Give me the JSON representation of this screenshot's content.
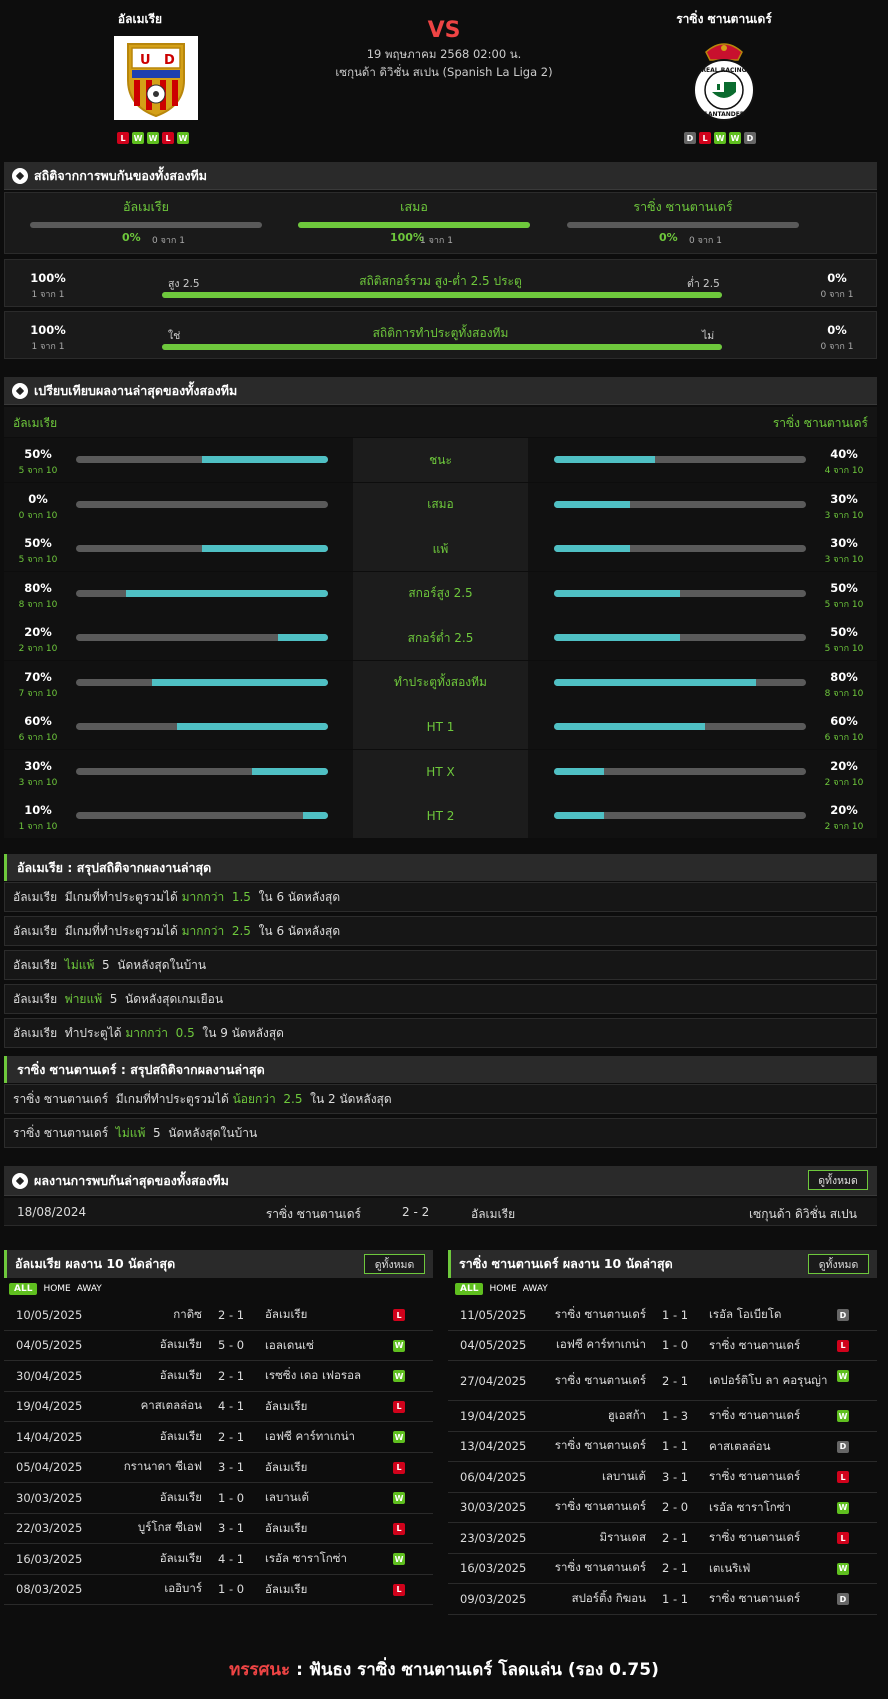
{
  "header": {
    "home": "อัลเมเรีย",
    "away": "ราซิ่ง ซานตานเดร์",
    "vs": "VS",
    "date": "19 พฤษภาคม 2568 02:00 น.",
    "league": "เซกุนด้า ดิวิชั่น สเปน (Spanish La Liga 2)",
    "home_form": [
      "L",
      "W",
      "W",
      "L",
      "W"
    ],
    "away_form": [
      "D",
      "L",
      "W",
      "W",
      "D"
    ]
  },
  "h2h": {
    "title": "สถิติจากการพบกันของทั้งสองทีม",
    "cols": [
      {
        "label": "อัลเมเรีย",
        "pct": "0%",
        "sub": "0 จาก 1",
        "value": 0
      },
      {
        "label": "เสมอ",
        "pct": "100%",
        "sub": "1 จาก 1",
        "value": 100
      },
      {
        "label": "ราซิ่ง ซานตานเดร์",
        "pct": "0%",
        "sub": "0 จาก 1",
        "value": 0
      }
    ],
    "ou": {
      "title": "สถิติสกอร์รวม สูง-ต่ำ 2.5 ประตู",
      "left_label": "สูง 2.5",
      "right_label": "ต่ำ 2.5",
      "left_pct": "100%",
      "left_sub": "1 จาก 1",
      "right_pct": "0%",
      "right_sub": "0 จาก 1",
      "value": 100
    },
    "btts": {
      "title": "สถิติการทำประตูทั้งสองทีม",
      "left_label": "ใช่",
      "right_label": "ไม่",
      "left_pct": "100%",
      "left_sub": "1 จาก 1",
      "right_pct": "0%",
      "right_sub": "0 จาก 1",
      "value": 100
    }
  },
  "compare": {
    "title": "เปรียบเทียบผลงานล่าสุดของทั้งสองทีม",
    "home": "อัลเมเรีย",
    "away": "ราซิ่ง ซานตานเดร์",
    "rows": [
      {
        "label": "ชนะ",
        "hp": "50%",
        "hs": "5 จาก 10",
        "hv": 50,
        "ap": "40%",
        "as": "4 จาก 10",
        "av": 40
      },
      {
        "label": "เสมอ",
        "hp": "0%",
        "hs": "0 จาก 10",
        "hv": 0,
        "ap": "30%",
        "as": "3 จาก 10",
        "av": 30
      },
      {
        "label": "แพ้",
        "hp": "50%",
        "hs": "5 จาก 10",
        "hv": 50,
        "ap": "30%",
        "as": "3 จาก 10",
        "av": 30
      },
      {
        "label": "สกอร์สูง 2.5",
        "hp": "80%",
        "hs": "8 จาก 10",
        "hv": 80,
        "ap": "50%",
        "as": "5 จาก 10",
        "av": 50
      },
      {
        "label": "สกอร์ต่ำ 2.5",
        "hp": "20%",
        "hs": "2 จาก 10",
        "hv": 20,
        "ap": "50%",
        "as": "5 จาก 10",
        "av": 50
      },
      {
        "label": "ทำประตูทั้งสองทีม",
        "hp": "70%",
        "hs": "7 จาก 10",
        "hv": 70,
        "ap": "80%",
        "as": "8 จาก 10",
        "av": 80
      },
      {
        "label": "HT 1",
        "hp": "60%",
        "hs": "6 จาก 10",
        "hv": 60,
        "ap": "60%",
        "as": "6 จาก 10",
        "av": 60
      },
      {
        "label": "HT X",
        "hp": "30%",
        "hs": "3 จาก 10",
        "hv": 30,
        "ap": "20%",
        "as": "2 จาก 10",
        "av": 20
      },
      {
        "label": "HT 2",
        "hp": "10%",
        "hs": "1 จาก 10",
        "hv": 10,
        "ap": "20%",
        "as": "2 จาก 10",
        "av": 20
      }
    ]
  },
  "summary_home": {
    "title": "อัลเมเรีย : สรุปสถิติจากผลงานล่าสุด",
    "rows": [
      [
        "อัลเมเรีย  มีเกมที่ทำประตูรวมได้ ",
        "มากกว่า  1.5",
        "  ใน 6 นัดหลังสุด"
      ],
      [
        "อัลเมเรีย  มีเกมที่ทำประตูรวมได้ ",
        "มากกว่า  2.5",
        "  ใน 6 นัดหลังสุด"
      ],
      [
        "อัลเมเรีย  ",
        "ไม่แพ้",
        "  5  นัดหลังสุดในบ้าน"
      ],
      [
        "อัลเมเรีย  ",
        "พ่ายแพ้",
        "  5  นัดหลังสุดเกมเยือน"
      ],
      [
        "อัลเมเรีย  ทำประตูได้ ",
        "มากกว่า  0.5",
        "  ใน 9 นัดหลังสุด"
      ]
    ]
  },
  "summary_away": {
    "title": "ราซิ่ง ซานตานเดร์ : สรุปสถิติจากผลงานล่าสุด",
    "rows": [
      [
        "ราซิ่ง ซานตานเดร์  มีเกมที่ทำประตูรวมได้ ",
        "น้อยกว่า  2.5",
        "  ใน 2 นัดหลังสุด"
      ],
      [
        "ราซิ่ง ซานตานเดร์  ",
        "ไม่แพ้",
        "  5  นัดหลังสุดในบ้าน"
      ]
    ]
  },
  "recent_h2h": {
    "title": "ผลงานการพบกันล่าสุดของทั้งสองทีม",
    "view_all": "ดูทั้งหมด",
    "date": "18/08/2024",
    "home": "ราซิ่ง ซานตานเดร์",
    "score": "2 - 2",
    "away": "อัลเมเรีย",
    "league": "เซกุนด้า ดิวิชั่น สเปน"
  },
  "home_last": {
    "title": "อัลเมเรีย ผลงาน 10 นัดล่าสุด",
    "view_all": "ดูทั้งหมด",
    "filters": [
      "ALL",
      "HOME",
      "AWAY"
    ],
    "matches": [
      {
        "date": "10/05/2025",
        "home": "กาดิซ",
        "score": "2 - 1",
        "away": "อัลเมเรีย",
        "r": "L"
      },
      {
        "date": "04/05/2025",
        "home": "อัลเมเรีย",
        "score": "5 - 0",
        "away": "เอลเดนเซ่",
        "r": "W"
      },
      {
        "date": "30/04/2025",
        "home": "อัลเมเรีย",
        "score": "2 - 1",
        "away": "เรซซิ่ง เดอ เฟอรอล",
        "r": "W"
      },
      {
        "date": "19/04/2025",
        "home": "คาสเตลล่อน",
        "score": "4 - 1",
        "away": "อัลเมเรีย",
        "r": "L"
      },
      {
        "date": "14/04/2025",
        "home": "อัลเมเรีย",
        "score": "2 - 1",
        "away": "เอฟซี คาร์ทาเกน่า",
        "r": "W"
      },
      {
        "date": "05/04/2025",
        "home": "กรานาดา ซีเอฟ",
        "score": "3 - 1",
        "away": "อัลเมเรีย",
        "r": "L"
      },
      {
        "date": "30/03/2025",
        "home": "อัลเมเรีย",
        "score": "1 - 0",
        "away": "เลบานเต้",
        "r": "W"
      },
      {
        "date": "22/03/2025",
        "home": "บูร์โกส ซีเอฟ",
        "score": "3 - 1",
        "away": "อัลเมเรีย",
        "r": "L"
      },
      {
        "date": "16/03/2025",
        "home": "อัลเมเรีย",
        "score": "4 - 1",
        "away": "เรอัล ซาราโกซ่า",
        "r": "W"
      },
      {
        "date": "08/03/2025",
        "home": "เออิบาร์",
        "score": "1 - 0",
        "away": "อัลเมเรีย",
        "r": "L"
      }
    ]
  },
  "away_last": {
    "title": "ราซิ่ง ซานตานเดร์ ผลงาน 10 นัดล่าสุด",
    "view_all": "ดูทั้งหมด",
    "filters": [
      "ALL",
      "HOME",
      "AWAY"
    ],
    "matches": [
      {
        "date": "11/05/2025",
        "home": "ราซิ่ง ซานตานเดร์",
        "score": "1 - 1",
        "away": "เรอัล โอเบียโด",
        "r": "D"
      },
      {
        "date": "04/05/2025",
        "home": "เอฟซี คาร์ทาเกน่า",
        "score": "1 - 0",
        "away": "ราซิ่ง ซานตานเดร์",
        "r": "L"
      },
      {
        "date": "27/04/2025",
        "home": "ราซิ่ง ซานตานเดร์",
        "score": "2 - 1",
        "away": "เดปอร์ติโบ ลา คอรุนญ่า",
        "r": "W"
      },
      {
        "date": "19/04/2025",
        "home": "ฮูเอสก้า",
        "score": "1 - 3",
        "away": "ราซิ่ง ซานตานเดร์",
        "r": "W"
      },
      {
        "date": "13/04/2025",
        "home": "ราซิ่ง ซานตานเดร์",
        "score": "1 - 1",
        "away": "คาสเตลล่อน",
        "r": "D"
      },
      {
        "date": "06/04/2025",
        "home": "เลบานเต้",
        "score": "3 - 1",
        "away": "ราซิ่ง ซานตานเดร์",
        "r": "L"
      },
      {
        "date": "30/03/2025",
        "home": "ราซิ่ง ซานตานเดร์",
        "score": "2 - 0",
        "away": "เรอัล ซาราโกซ่า",
        "r": "W"
      },
      {
        "date": "23/03/2025",
        "home": "มิรานเดส",
        "score": "2 - 1",
        "away": "ราซิ่ง ซานตานเดร์",
        "r": "L"
      },
      {
        "date": "16/03/2025",
        "home": "ราซิ่ง ซานตานเดร์",
        "score": "2 - 1",
        "away": "เตเนริเฟ่",
        "r": "W"
      },
      {
        "date": "09/03/2025",
        "home": "สปอร์ติ้ง กิฆอน",
        "score": "1 - 1",
        "away": "ราซิ่ง ซานตานเดร์",
        "r": "D"
      }
    ]
  },
  "prediction": {
    "label": "ทรรศนะ",
    "sep": ":",
    "text": "ฟันธง ราซิ่ง ซานตานเดร์ โลดแล่น (รอง 0.75)"
  }
}
